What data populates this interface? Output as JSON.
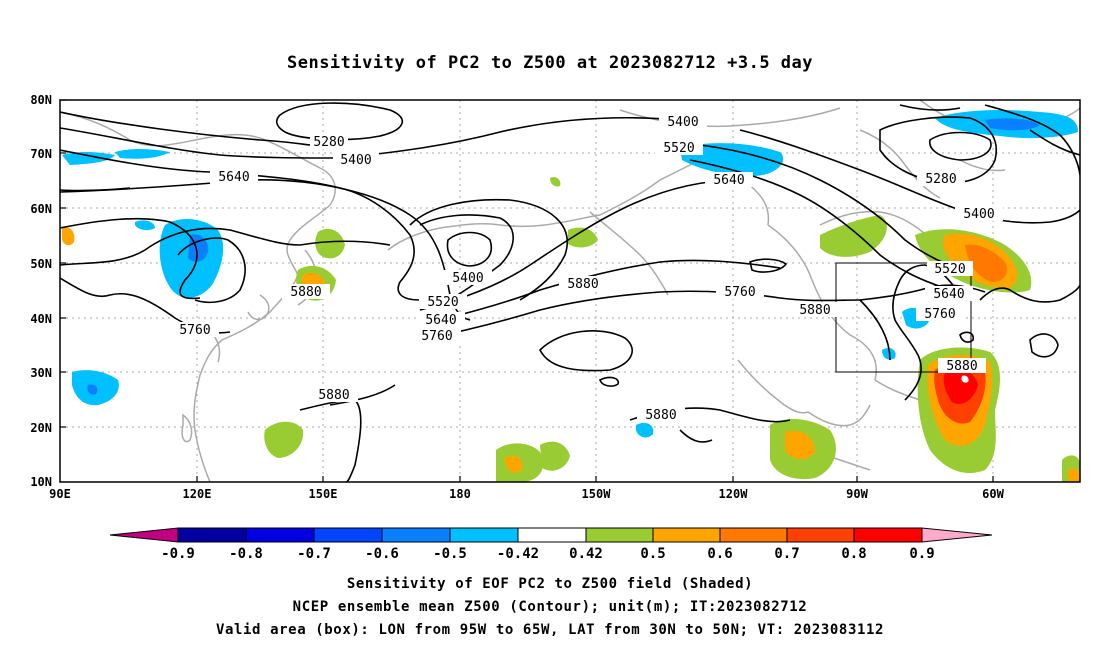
{
  "title": "Sensitivity of PC2 to Z500 at 2023082712 +3.5 day",
  "map": {
    "lat_ticks": [
      "80N",
      "70N",
      "60N",
      "50N",
      "40N",
      "30N",
      "20N",
      "10N"
    ],
    "lon_ticks": [
      "90E",
      "120E",
      "150E",
      "180",
      "150W",
      "120W",
      "90W",
      "60W"
    ],
    "grid": true,
    "contour_labels": [
      {
        "text": "5280"
      },
      {
        "text": "5400"
      },
      {
        "text": "5640"
      },
      {
        "text": "5400"
      },
      {
        "text": "5520"
      },
      {
        "text": "5640"
      },
      {
        "text": "5280"
      },
      {
        "text": "5400"
      },
      {
        "text": "5400"
      },
      {
        "text": "5520"
      },
      {
        "text": "5640"
      },
      {
        "text": "5760"
      },
      {
        "text": "5880"
      },
      {
        "text": "5880"
      },
      {
        "text": "5760"
      },
      {
        "text": "5880"
      },
      {
        "text": "5760"
      },
      {
        "text": "5520"
      },
      {
        "text": "5640"
      },
      {
        "text": "5760"
      },
      {
        "text": "5880"
      },
      {
        "text": "5880"
      },
      {
        "text": "5880"
      }
    ],
    "box_bounds": {
      "lon_west": "95W",
      "lon_east": "65W",
      "lat_south": "30N",
      "lat_north": "50N"
    }
  },
  "colorbar": {
    "ticks": [
      "-0.9",
      "-0.8",
      "-0.7",
      "-0.6",
      "-0.5",
      "-0.42",
      "0.42",
      "0.5",
      "0.6",
      "0.7",
      "0.8",
      "0.9"
    ],
    "colors": [
      "#c00080",
      "#0000a0",
      "#0000e0",
      "#0044ff",
      "#0a7fff",
      "#00c0ff",
      "#ffffff",
      "#99cc33",
      "#ffa500",
      "#ff7800",
      "#ff4000",
      "#ff0000",
      "#ffaacc"
    ]
  },
  "footer": {
    "line1": "Sensitivity of EOF PC2 to Z500 field (Shaded)",
    "line2": "NCEP ensemble mean Z500 (Contour); unit(m); IT:2023082712",
    "line3": "Valid area (box): LON from 95W to 65W, LAT from 30N to 50N; VT: 2023083112"
  }
}
